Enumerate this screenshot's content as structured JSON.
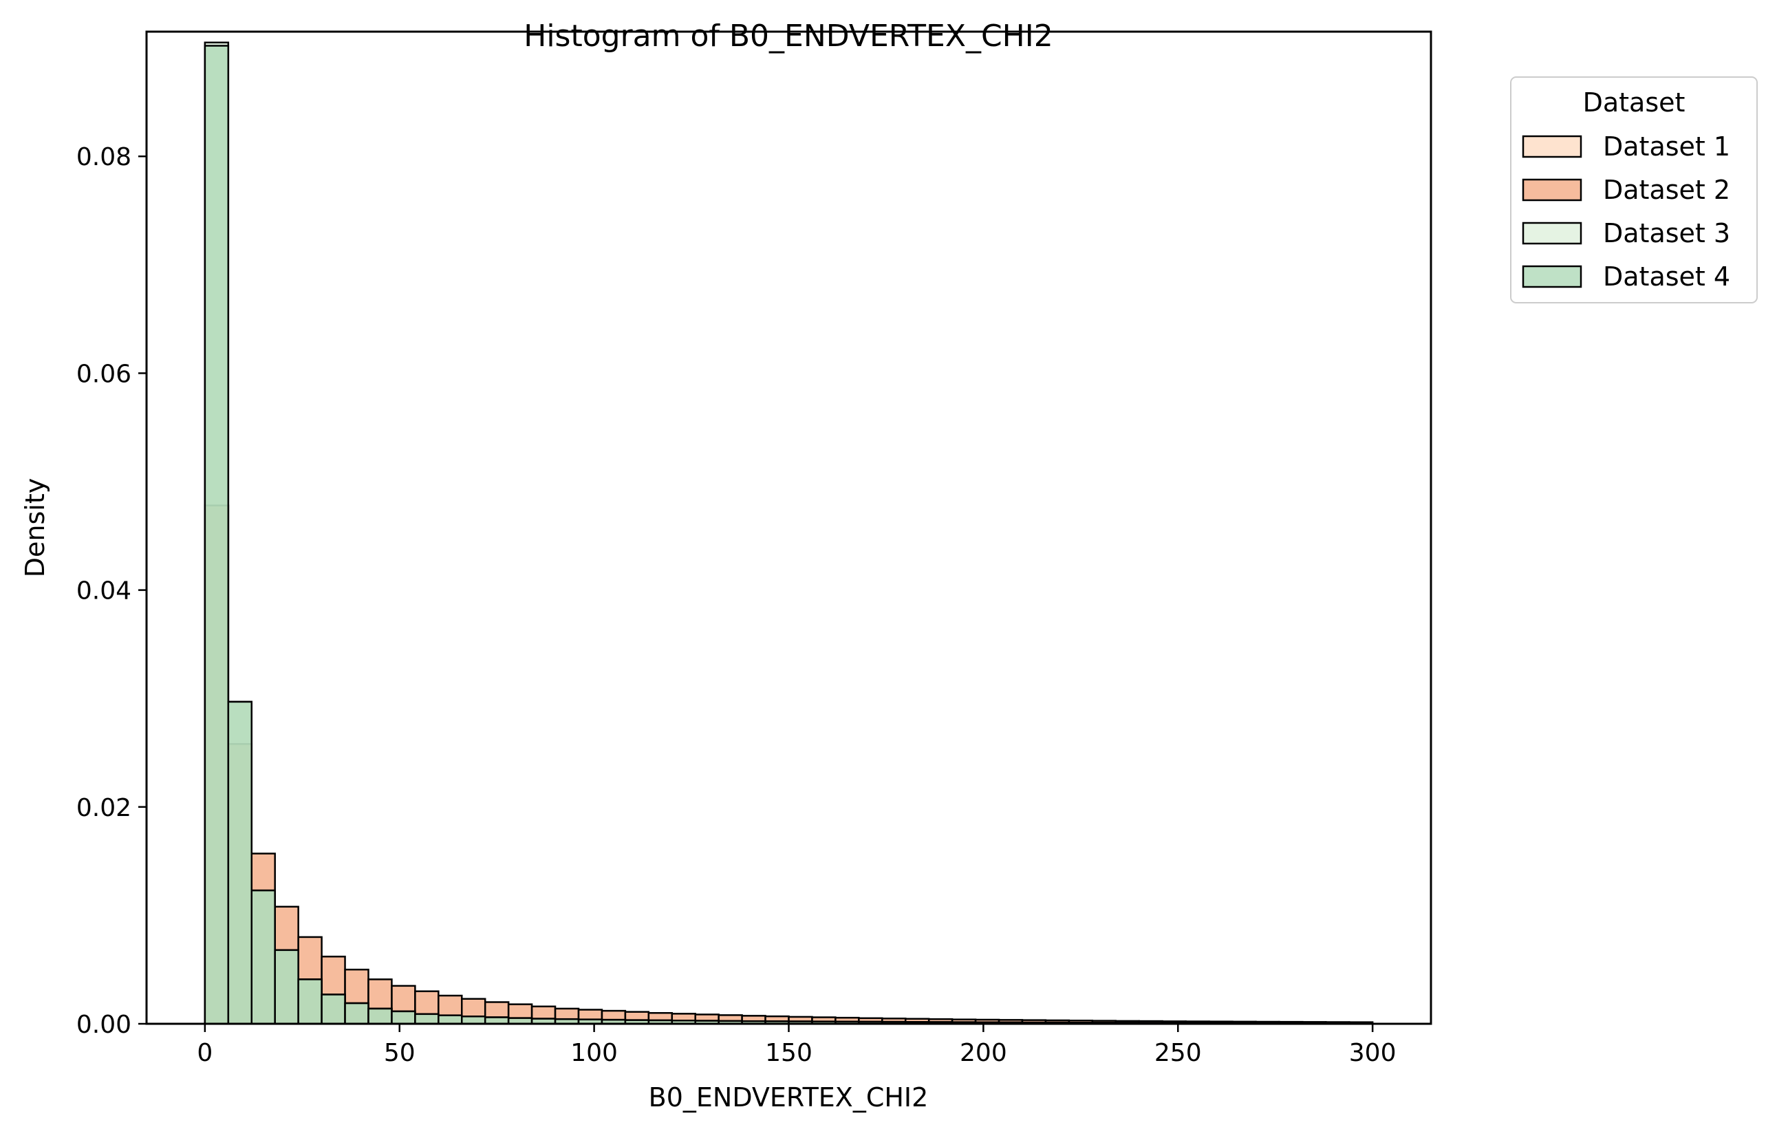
{
  "chart_data": {
    "type": "bar",
    "title": "Histogram of B0_ENDVERTEX_CHI2",
    "xlabel": "B0_ENDVERTEX_CHI2",
    "ylabel": "Density",
    "xlim": [
      -15,
      315
    ],
    "ylim": [
      0,
      0.0915
    ],
    "x_ticks": [
      "0",
      "50",
      "100",
      "150",
      "200",
      "250",
      "300"
    ],
    "y_ticks": [
      "0.00",
      "0.02",
      "0.04",
      "0.06",
      "0.08"
    ],
    "grid": false,
    "bin_width": 6,
    "bin_start": 0,
    "legend": {
      "title": "Dataset",
      "position": "outside-top-right"
    },
    "series": [
      {
        "name": "Dataset 1",
        "color": "#fdd9bf",
        "values": [
          0.0478,
          0.0258,
          0.0123,
          0.0068,
          0.0041,
          0.0027,
          0.0019,
          0.0014,
          0.00115,
          0.0009,
          0.00078,
          0.00068,
          0.0006,
          0.00053,
          0.00047,
          0.00043,
          0.0004,
          0.00037,
          0.00034,
          0.00032,
          0.0003,
          0.00028,
          0.00026,
          0.00024,
          0.00023,
          0.00022,
          0.00021,
          0.0002,
          0.00019,
          0.00018,
          0.00017,
          0.00016,
          0.00015,
          0.00014,
          0.00013,
          0.00012,
          0.00012,
          0.00011,
          0.0001,
          0.0001,
          9e-05,
          9e-05,
          8e-05,
          8e-05,
          7e-05,
          7e-05,
          6e-05,
          6e-05,
          5e-05,
          5e-05
        ]
      },
      {
        "name": "Dataset 2",
        "color": "#f3a67c",
        "values": [
          0.0478,
          0.0258,
          0.0157,
          0.0108,
          0.008,
          0.0062,
          0.005,
          0.0041,
          0.0035,
          0.003,
          0.0026,
          0.0023,
          0.002,
          0.0018,
          0.0016,
          0.0014,
          0.0013,
          0.0012,
          0.0011,
          0.001,
          0.00093,
          0.00086,
          0.0008,
          0.00074,
          0.00069,
          0.00064,
          0.0006,
          0.00056,
          0.00052,
          0.00049,
          0.00046,
          0.00043,
          0.0004,
          0.00038,
          0.00036,
          0.00034,
          0.00032,
          0.0003,
          0.00028,
          0.00026,
          0.00025,
          0.00023,
          0.00022,
          0.00021,
          0.0002,
          0.00019,
          0.00018,
          0.00017,
          0.00016,
          0.00015
        ]
      },
      {
        "name": "Dataset 3",
        "color": "#dcefd9",
        "values": [
          0.0905,
          0.0297,
          0.0123,
          0.0068,
          0.0041,
          0.0027,
          0.0019,
          0.0014,
          0.00115,
          0.0009,
          0.00078,
          0.00068,
          0.0006,
          0.00053,
          0.00047,
          0.00043,
          0.0004,
          0.00037,
          0.00034,
          0.00032,
          0.0003,
          0.00028,
          0.00026,
          0.00024,
          0.00023,
          0.00022,
          0.00021,
          0.0002,
          0.00019,
          0.00018,
          0.00017,
          0.00016,
          0.00015,
          0.00014,
          0.00013,
          0.00012,
          0.00012,
          0.00011,
          0.0001,
          0.0001,
          9e-05,
          9e-05,
          8e-05,
          8e-05,
          7e-05,
          7e-05,
          6e-05,
          6e-05,
          5e-05,
          5e-05
        ]
      },
      {
        "name": "Dataset 4",
        "color": "#a9d7b3",
        "values": [
          0.0902,
          0.0297,
          0.0123,
          0.0068,
          0.0041,
          0.0027,
          0.0019,
          0.0014,
          0.00115,
          0.0009,
          0.00078,
          0.00068,
          0.0006,
          0.00053,
          0.00047,
          0.00043,
          0.0004,
          0.00037,
          0.00034,
          0.00032,
          0.0003,
          0.00028,
          0.00026,
          0.00024,
          0.00023,
          0.00022,
          0.00021,
          0.0002,
          0.00019,
          0.00018,
          0.00017,
          0.00016,
          0.00015,
          0.00014,
          0.00013,
          0.00012,
          0.00012,
          0.00011,
          0.0001,
          0.0001,
          9e-05,
          9e-05,
          8e-05,
          8e-05,
          7e-05,
          7e-05,
          6e-05,
          6e-05,
          5e-05,
          5e-05
        ]
      }
    ]
  }
}
